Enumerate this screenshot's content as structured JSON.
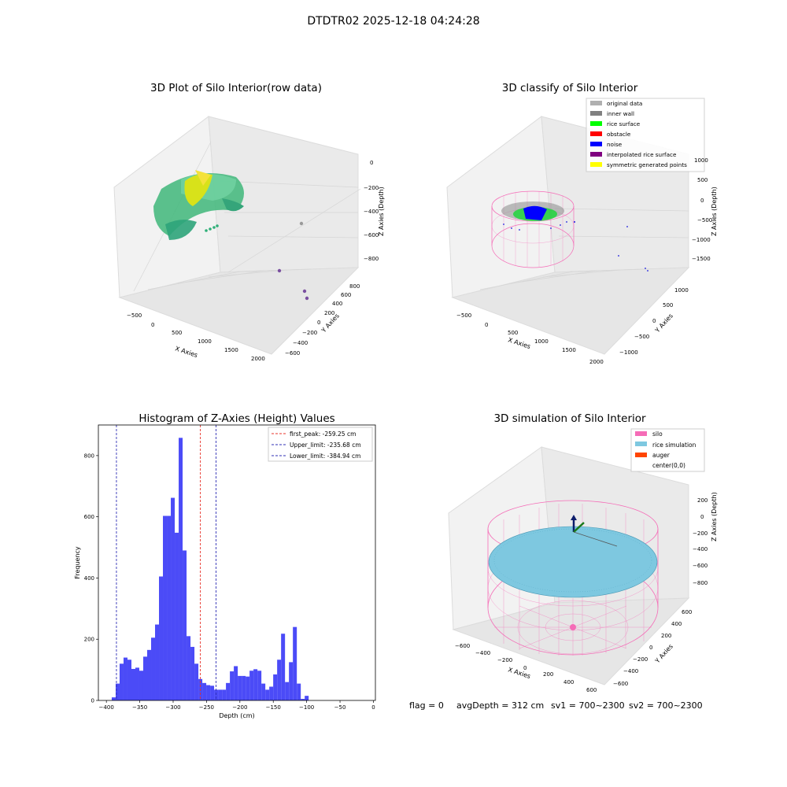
{
  "suptitle": "DTDTR02 2025-12-18 04:24:28",
  "footer": {
    "flag": "flag = 0",
    "avg": "avgDepth = 312 cm",
    "sv1": "sv1 = 700~2300",
    "sv2": "sv2 = 700~2300"
  },
  "colors": {
    "hist_bar": "#4b4bf7",
    "peak_line": "#e8332b",
    "limit_line": "#2f2fb5",
    "silo": "#f56cb7",
    "rice": "#7ec8e0",
    "auger": "#ff4500",
    "original": "#b0b0b0",
    "inner_wall": "#808080",
    "rice_surface": "#00ff00",
    "obstacle": "#ff0000",
    "noise": "#0000ff",
    "interpolated": "#800080",
    "symmetric": "#ffff00"
  },
  "chart_data": [
    {
      "type": "scatter",
      "title": "3D Plot of Silo Interior(row data)",
      "xlabel": "X Axies",
      "ylabel": "Y Axies",
      "zlabel": "Z Axies (Depth)",
      "x_ticks": [
        "−500",
        "0",
        "500",
        "1000",
        "1500",
        "2000"
      ],
      "y_ticks": [
        "−600",
        "−400",
        "−200",
        "0",
        "200",
        "400",
        "600",
        "800"
      ],
      "z_ticks": [
        "−800",
        "−600",
        "−400",
        "−200",
        "0"
      ],
      "outliers": [
        {
          "x": 1200,
          "y": 400,
          "z": -600
        },
        {
          "x": 950,
          "y": 100,
          "z": -800
        },
        {
          "x": 1300,
          "y": -100,
          "z": -850
        },
        {
          "x": 1350,
          "y": -150,
          "z": -870
        }
      ]
    },
    {
      "type": "scatter",
      "title": "3D classify of Silo Interior",
      "xlabel": "X Axies",
      "ylabel": "Y Axies",
      "zlabel": "Z Axies (Depth)",
      "x_ticks": [
        "−500",
        "0",
        "500",
        "1000",
        "1500",
        "2000"
      ],
      "y_ticks": [
        "−1000",
        "−500",
        "0",
        "500",
        "1000"
      ],
      "z_ticks": [
        "−1500",
        "−1000",
        "−500",
        "0",
        "500",
        "1000"
      ],
      "legend": [
        "original data",
        "inner wall",
        "rice surface",
        "obstacle",
        "noise",
        "interpolated rice surface",
        "symmetric generated points"
      ],
      "legend_placement": "top-right"
    },
    {
      "type": "bar",
      "title": "Histogram of Z-Axies (Height) Values",
      "xlabel": "Depth (cm)",
      "ylabel": "Frequency",
      "xlim": [
        -412,
        3
      ],
      "ylim": [
        0,
        900
      ],
      "x_ticks": [
        -400,
        -350,
        -300,
        -250,
        -200,
        -150,
        -100,
        -50,
        0
      ],
      "x_tick_labels": [
        "−400",
        "−350",
        "−300",
        "−250",
        "−200",
        "−150",
        "−100",
        "−50",
        "0"
      ],
      "y_ticks": [
        0,
        200,
        400,
        600,
        800
      ],
      "y_tick_labels": [
        "0",
        "200",
        "400",
        "600",
        "800"
      ],
      "bin_width": 5.9,
      "bins_start": -392,
      "values": [
        10,
        55,
        120,
        140,
        133,
        103,
        107,
        97,
        143,
        165,
        205,
        248,
        405,
        603,
        603,
        662,
        548,
        858,
        490,
        210,
        175,
        120,
        70,
        57,
        50,
        48,
        35,
        35,
        35,
        57,
        95,
        112,
        80,
        80,
        78,
        97,
        102,
        97,
        55,
        35,
        45,
        85,
        133,
        218,
        60,
        125,
        240,
        55,
        5,
        15
      ],
      "lines": [
        {
          "name": "first_peak: -259.25 cm",
          "x": -259.25,
          "color": "peak"
        },
        {
          "name": "Upper_limit: -235.68 cm",
          "x": -235.68,
          "color": "limit"
        },
        {
          "name": "Lower_limit: -384.94 cm",
          "x": -384.94,
          "color": "limit"
        }
      ],
      "legend_placement": "top-right"
    },
    {
      "type": "scatter",
      "title": "3D simulation of Silo Interior",
      "xlabel": "X Axies",
      "ylabel": "Y Axies",
      "zlabel": "Z Axies (Depth)",
      "x_ticks": [
        "−600",
        "−400",
        "−200",
        "0",
        "200",
        "400",
        "600"
      ],
      "y_ticks": [
        "−600",
        "−400",
        "−200",
        "0",
        "200",
        "400",
        "600"
      ],
      "z_ticks": [
        "−800",
        "−600",
        "−400",
        "−200",
        "0",
        "200"
      ],
      "legend": [
        "silo",
        "rice simulation",
        "auger",
        "center(0,0)"
      ],
      "legend_placement": "top-right"
    }
  ]
}
